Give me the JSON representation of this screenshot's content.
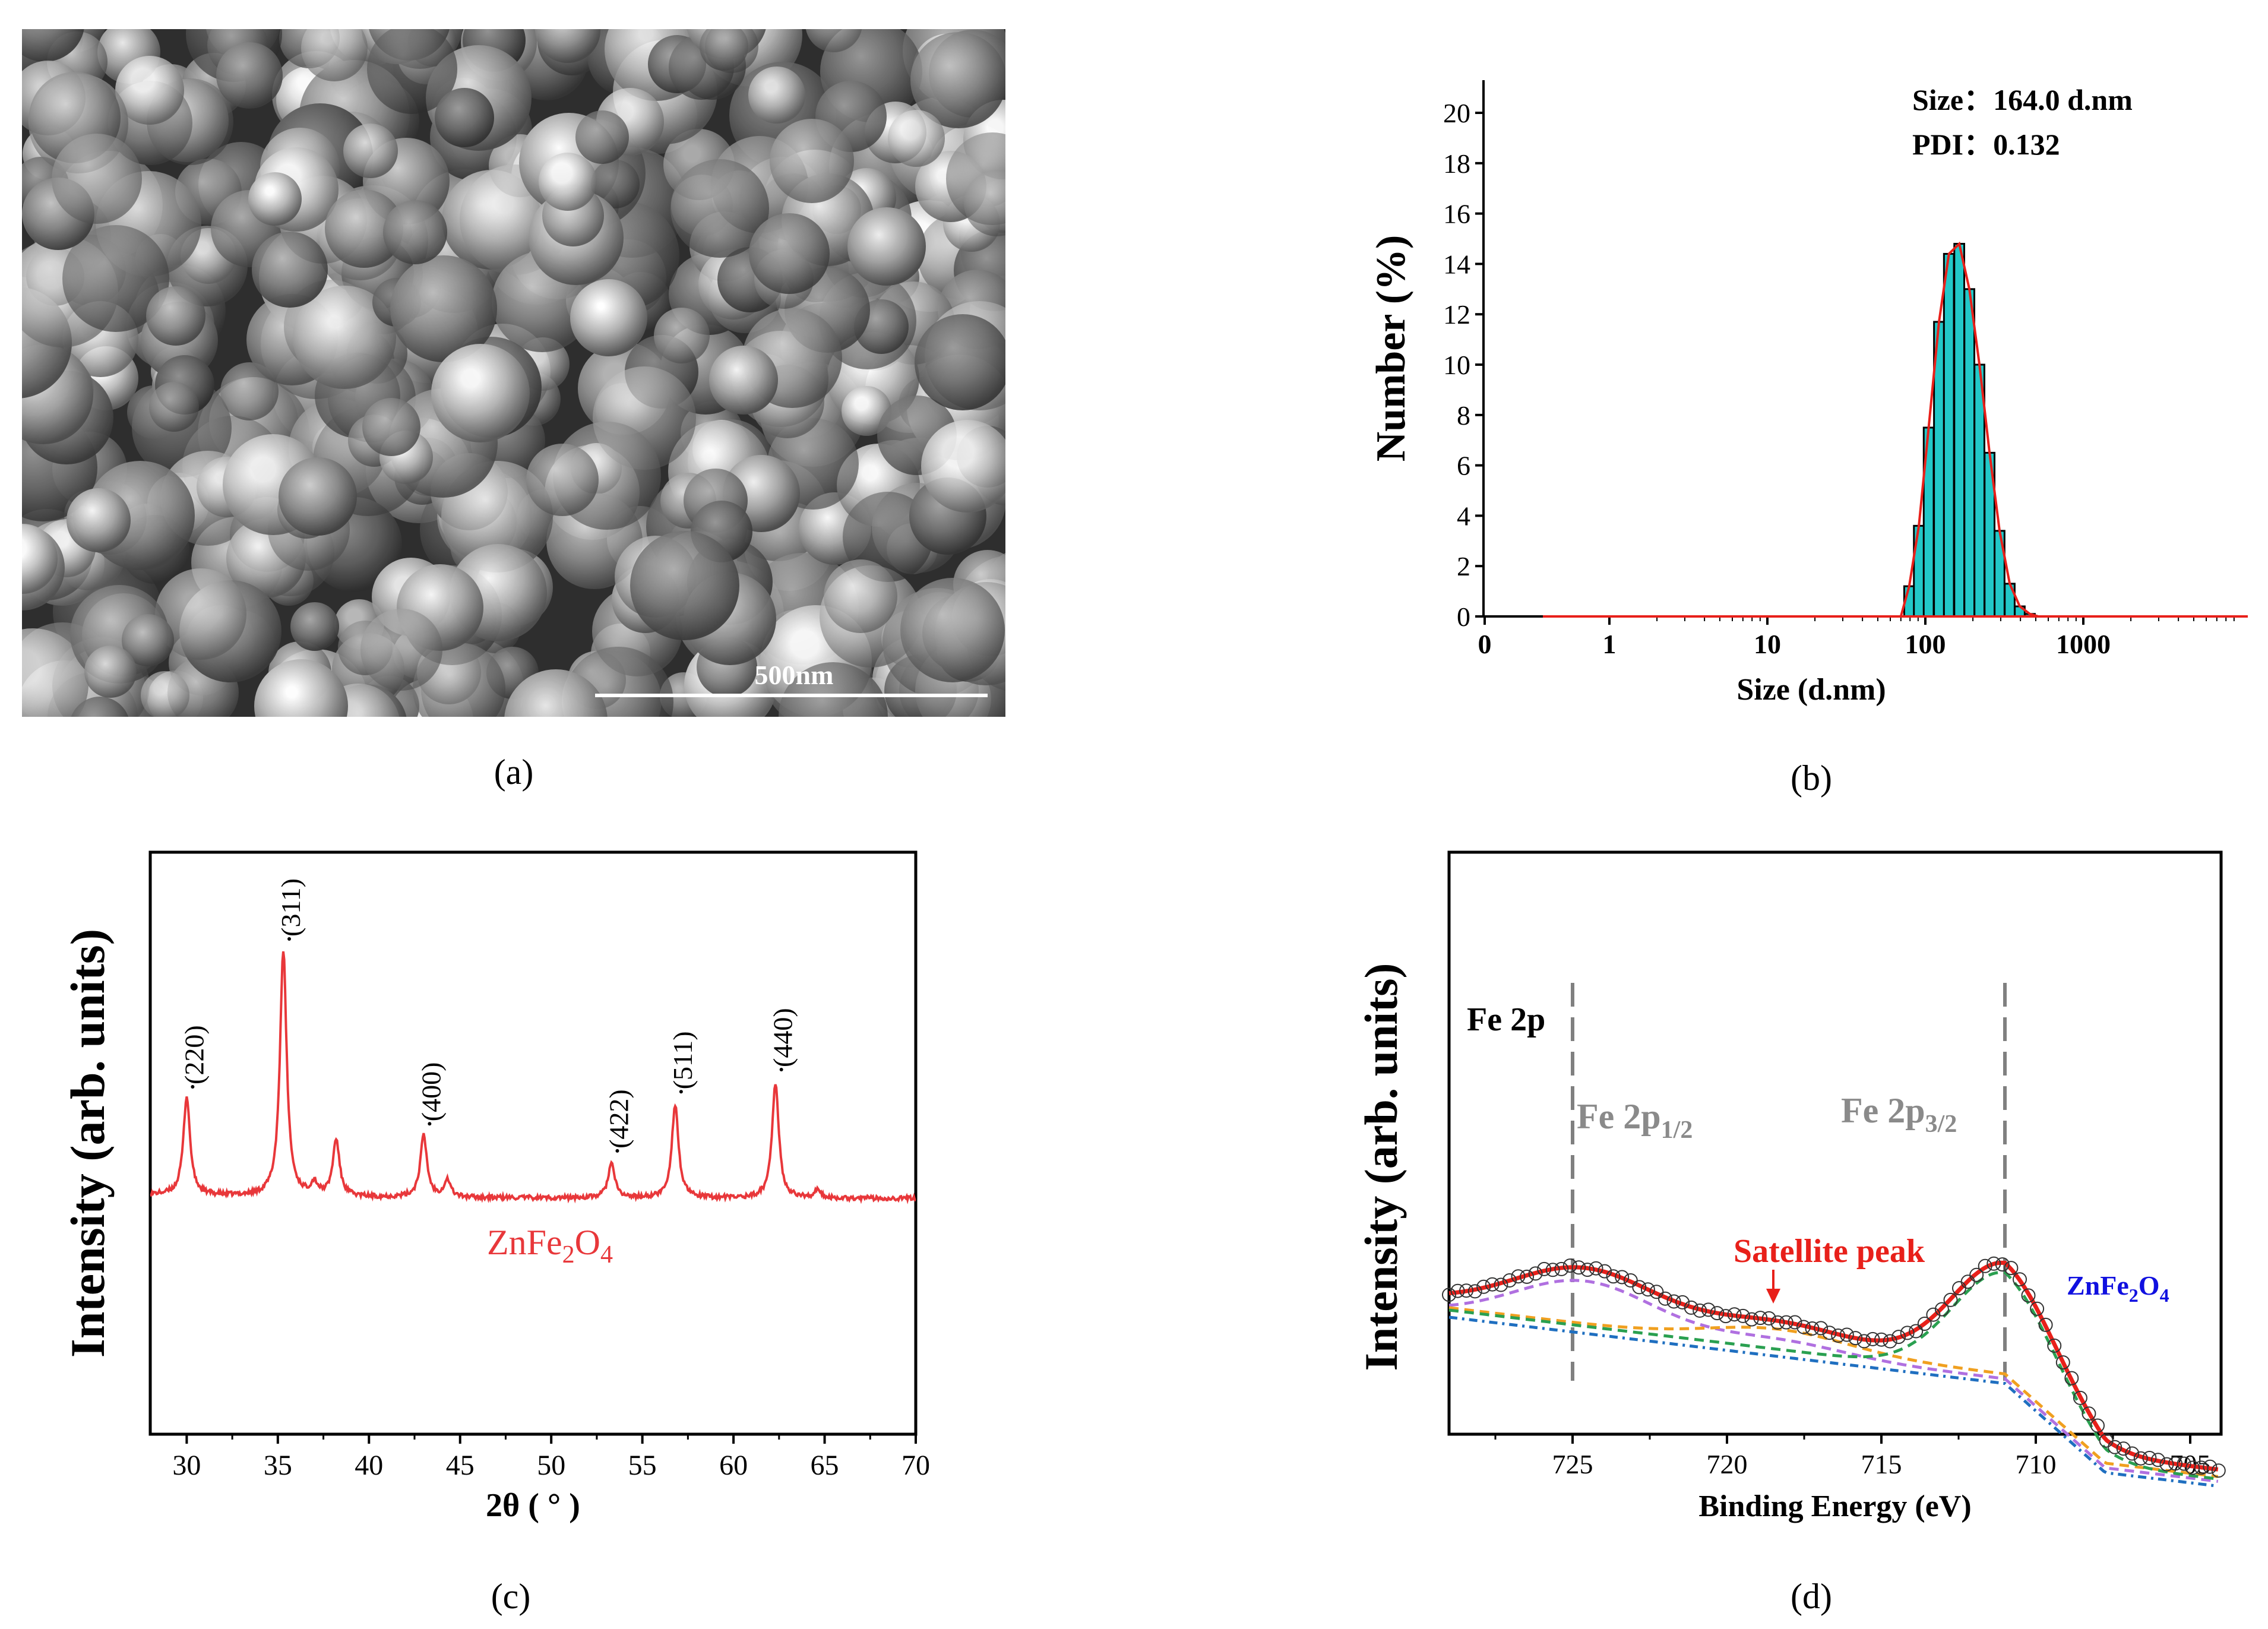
{
  "panels": {
    "a": {
      "label": "(a)",
      "scalebar_text": "500nm"
    },
    "b": {
      "label": "(b)",
      "size_text": "Size：164.0 d.nm",
      "pdi_text": "PDI：0.132"
    },
    "c": {
      "label": "(c)",
      "compound_text": "ZnFe2O4"
    },
    "d": {
      "label": "(d)",
      "fe2p_text": "Fe 2p",
      "fe2p12_text": "Fe 2p1/2",
      "fe2p32_text": "Fe 2p3/2",
      "satellite_text": "Satellite peak",
      "compound_text": "ZnFe2O4"
    }
  },
  "chart_data": [
    {
      "id": "b",
      "type": "bar",
      "xlabel": "Size (d.nm)",
      "ylabel": "Number (%)",
      "xscale": "log",
      "x_tick_labels": [
        "0",
        "1",
        "10",
        "100",
        "1000"
      ],
      "y_tick_labels": [
        "0",
        "2",
        "4",
        "6",
        "8",
        "10",
        "12",
        "14",
        "16",
        "18",
        "20"
      ],
      "ylim": [
        0,
        20
      ],
      "series": [
        {
          "x": [
            79,
            91,
            105,
            122,
            141,
            164,
            190,
            220,
            255,
            295,
            342,
            396,
            459
          ],
          "values": [
            1.2,
            3.6,
            7.5,
            11.7,
            14.4,
            14.8,
            13.0,
            10.0,
            6.5,
            3.4,
            1.3,
            0.4,
            0.1
          ]
        }
      ],
      "colors": {
        "bar": "#22c8c8",
        "fit": "#e8201a"
      }
    },
    {
      "id": "c",
      "type": "line",
      "xlabel": "2θ ( ° )",
      "ylabel": "Intensity (arb. units)",
      "xlim": [
        28,
        70
      ],
      "x_tick_labels": [
        "30",
        "35",
        "40",
        "45",
        "50",
        "55",
        "60",
        "65",
        "70"
      ],
      "peaks": [
        {
          "label": "(220)",
          "x": 30.0,
          "height": 0.4
        },
        {
          "label": "(311)",
          "x": 35.3,
          "height": 1.0
        },
        {
          "label": "(400)",
          "x": 43.0,
          "height": 0.25
        },
        {
          "label": "(422)",
          "x": 53.3,
          "height": 0.14
        },
        {
          "label": "(511)",
          "x": 56.8,
          "height": 0.38
        },
        {
          "label": "(440)",
          "x": 62.3,
          "height": 0.47
        }
      ],
      "minor_peaks": [
        {
          "x": 37.0,
          "height": 0.05
        },
        {
          "x": 38.2,
          "height": 0.23
        },
        {
          "x": 44.3,
          "height": 0.07
        },
        {
          "x": 64.6,
          "height": 0.03
        }
      ],
      "colors": {
        "line": "#e8373a",
        "text": "#e8373a"
      }
    },
    {
      "id": "d",
      "type": "line",
      "xlabel": "Binding Energy (eV)",
      "ylabel": "Intensity (arb. units)",
      "xlim": [
        729,
        704
      ],
      "x_tick_labels": [
        "725",
        "720",
        "715",
        "710",
        "705"
      ],
      "reference_lines": [
        725.0,
        711.0
      ],
      "satellite_x": 718.5,
      "colors": {
        "fit": "#e8201a",
        "background": "#1f6fc0",
        "green": "#2aa050",
        "orange": "#f0a020",
        "purple": "#b070e0",
        "ref": "#808080",
        "blue_text": "#1010e0"
      }
    }
  ]
}
